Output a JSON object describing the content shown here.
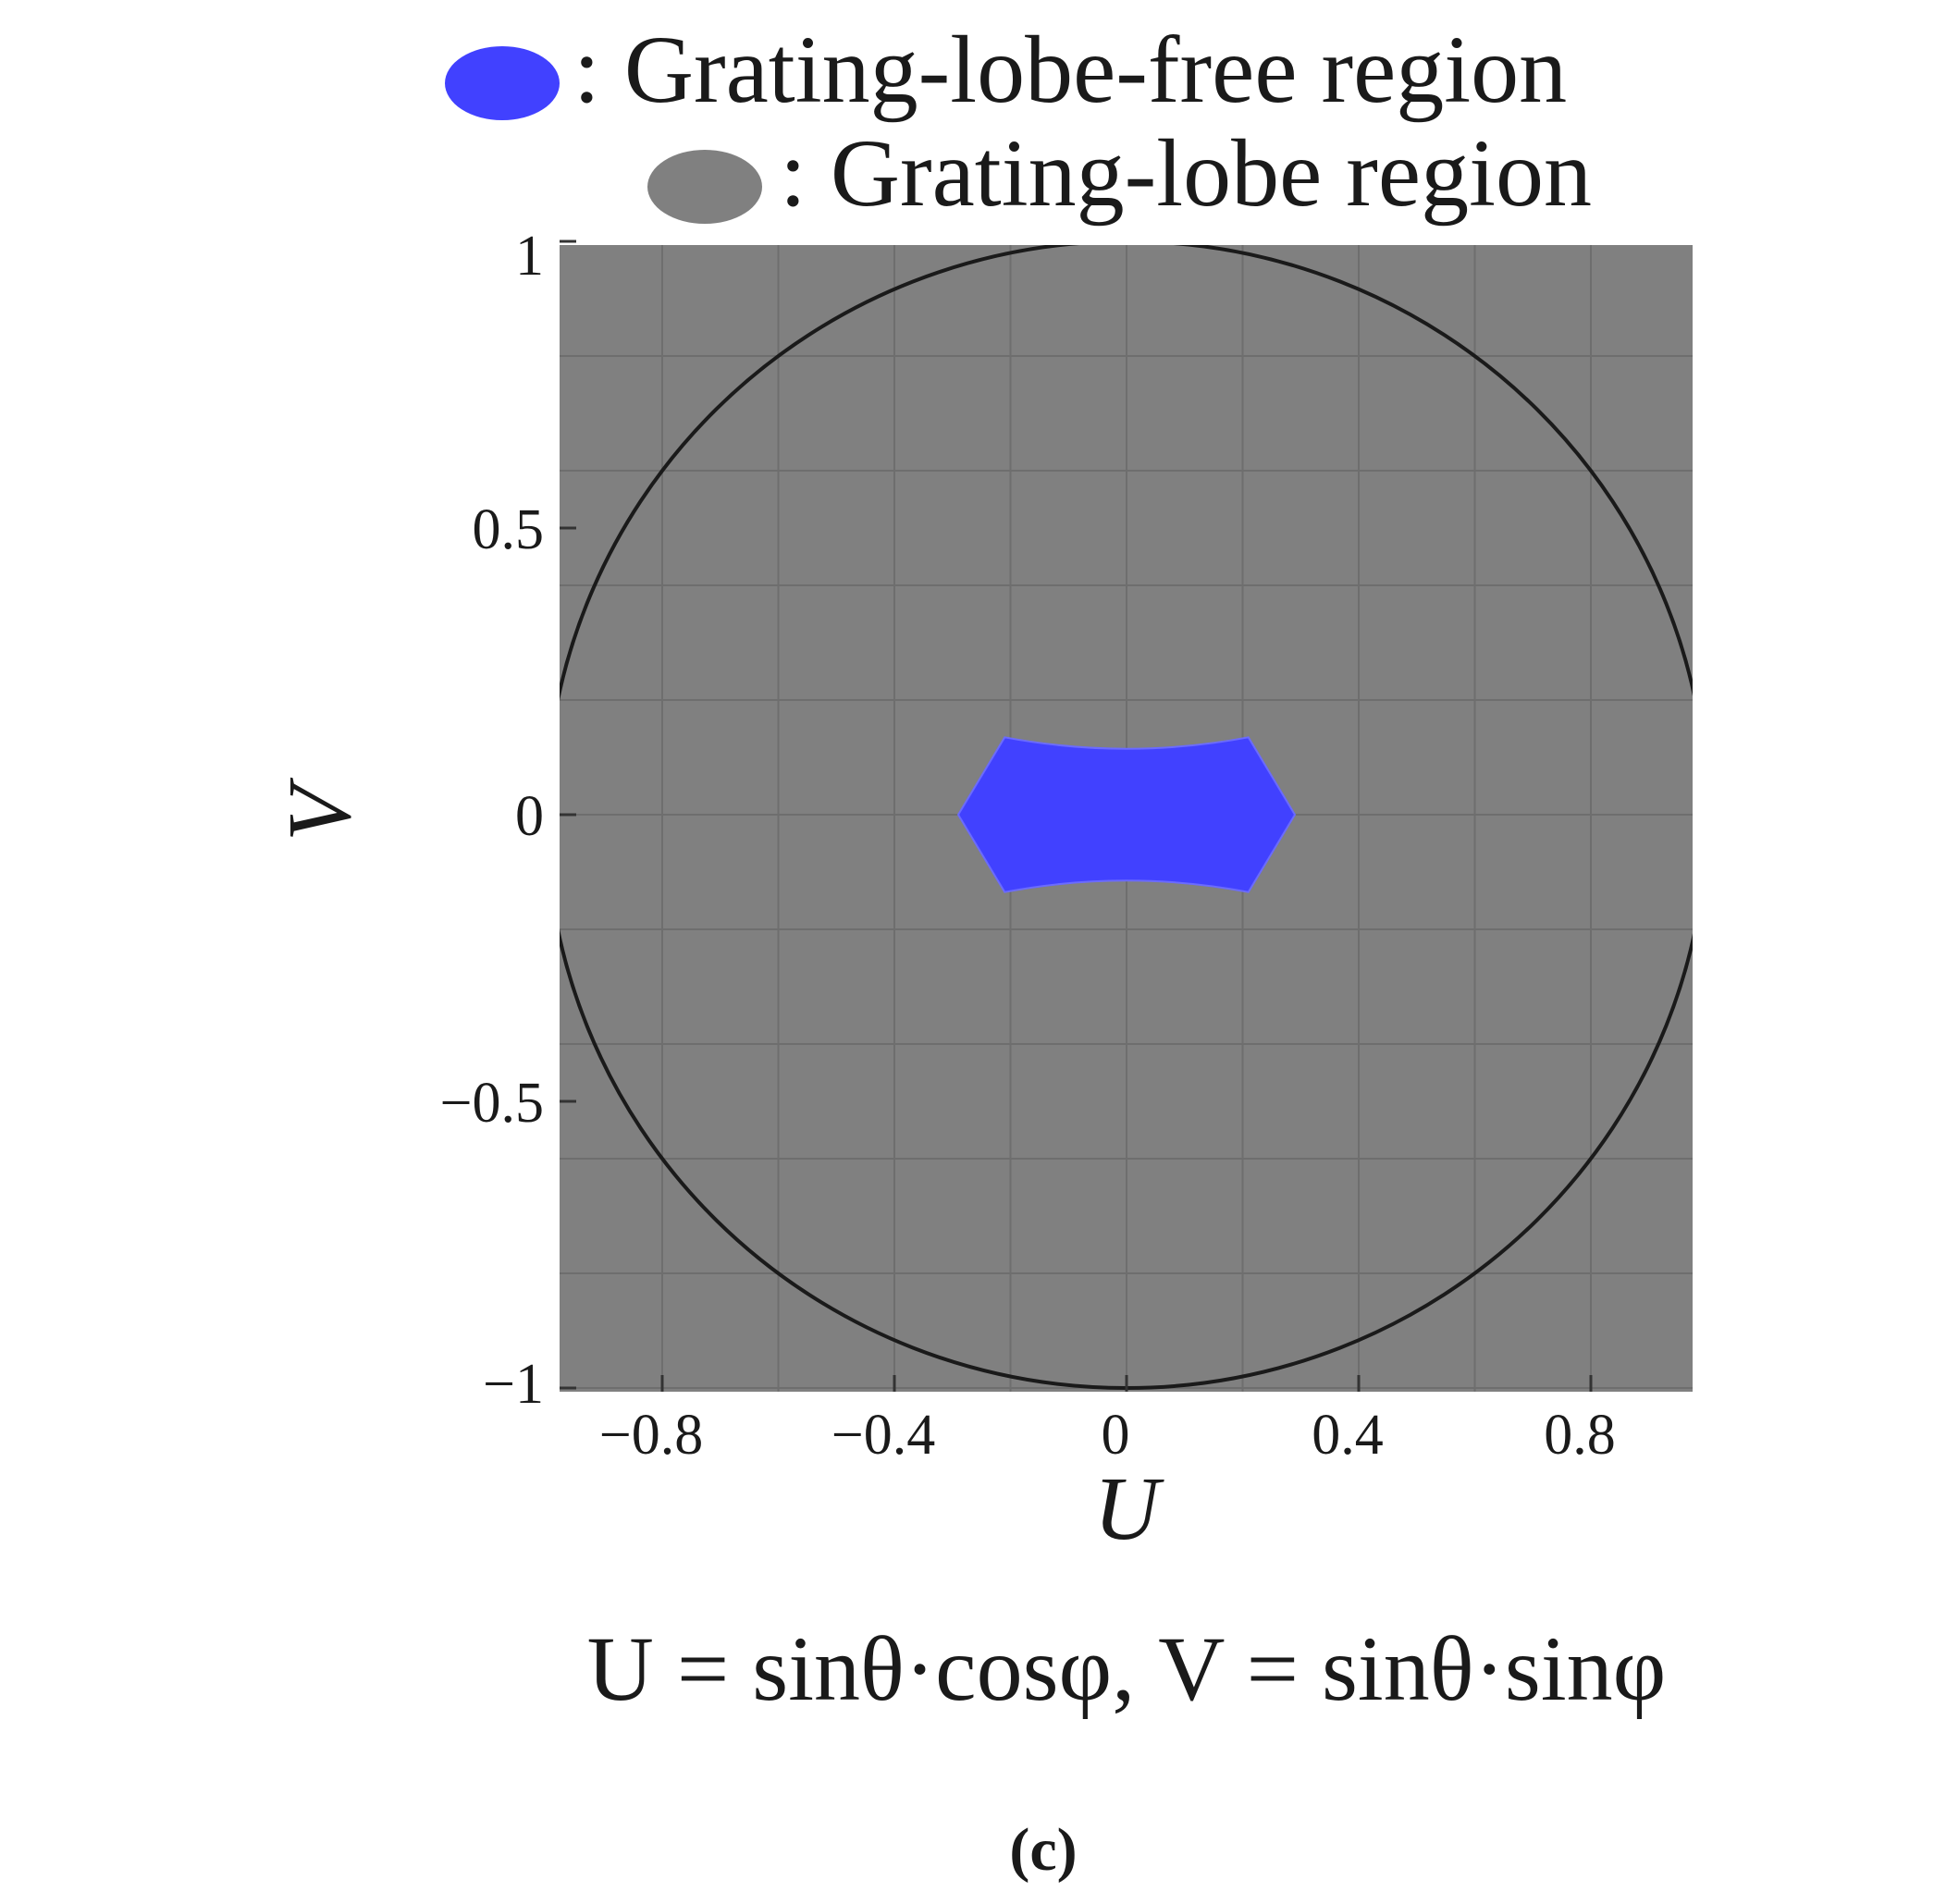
{
  "legend": [
    {
      "label": ": Grating-lobe-free region",
      "color": "#4141ff"
    },
    {
      "label": ": Grating-lobe region",
      "color": "#808080"
    }
  ],
  "formula": "U = sinθ·cosφ, V = sinθ·sinφ",
  "caption": "(c)",
  "chart_data": {
    "type": "region-plot",
    "xlabel": "U",
    "ylabel": "V",
    "xlim": [
      -1,
      1
    ],
    "ylim": [
      -1,
      1
    ],
    "x_ticks": [
      {
        "value": -0.8,
        "label": "−0.8"
      },
      {
        "value": -0.4,
        "label": "−0.4"
      },
      {
        "value": 0,
        "label": "0"
      },
      {
        "value": 0.4,
        "label": "0.4"
      },
      {
        "value": 0.8,
        "label": "0.8"
      }
    ],
    "y_ticks": [
      {
        "value": 1,
        "label": "1"
      },
      {
        "value": 0.5,
        "label": "0.5"
      },
      {
        "value": 0,
        "label": "0"
      },
      {
        "value": -0.5,
        "label": "−0.5"
      },
      {
        "value": -1,
        "label": "−1"
      }
    ],
    "grid": true,
    "background_region": {
      "name": "Grating-lobe region",
      "color": "#808080"
    },
    "unit_circle": {
      "center": [
        0,
        0
      ],
      "radius": 1,
      "color": "#1a1a1a"
    },
    "grating_lobe_free_region": {
      "name": "Grating-lobe-free region",
      "color": "#4141ff",
      "vertices": [
        [
          -0.29,
          0
        ],
        [
          -0.21,
          0.135
        ],
        [
          0.21,
          0.135
        ],
        [
          0.29,
          0
        ],
        [
          0.21,
          -0.135
        ],
        [
          -0.21,
          -0.135
        ]
      ],
      "edge_midpoint_v": 0.115
    }
  }
}
